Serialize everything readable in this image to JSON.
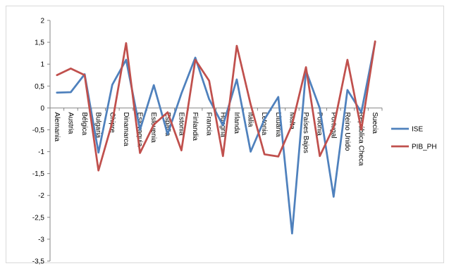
{
  "chart_data": {
    "type": "line",
    "title": "",
    "xlabel": "",
    "ylabel": "",
    "ylim": [
      -3.5,
      2
    ],
    "yticks": [
      "2",
      "1,5",
      "1",
      "0,5",
      "0",
      "-0,5",
      "-1",
      "-1,5",
      "-2",
      "-2,5",
      "-3",
      "-3,5"
    ],
    "ytick_values": [
      2,
      1.5,
      1,
      0.5,
      0,
      -0.5,
      -1,
      -1.5,
      -2,
      -2.5,
      -3,
      -3.5
    ],
    "categories": [
      "Alemania",
      "Austria",
      "Bélgica",
      "Bulgaria",
      "Chipre",
      "Dinamarca",
      "Eslovaquia",
      "Eslovenia",
      "España",
      "Estonia",
      "Finlandia",
      "Francia",
      "Hungría",
      "Irlanda",
      "Italia",
      "Letonia",
      "Lituania",
      "Malta",
      "Países Bajos",
      "Polonia",
      "Portugal",
      "Reino Unido",
      "República Checa",
      "Suecia"
    ],
    "grid": false,
    "legend_position": "right",
    "series": [
      {
        "name": "ISE",
        "color": "#4f81bd",
        "values": [
          0.35,
          0.36,
          0.77,
          -1.02,
          0.53,
          1.1,
          -0.5,
          0.52,
          -0.6,
          0.33,
          1.15,
          0.2,
          -0.4,
          0.65,
          -1.0,
          -0.26,
          0.25,
          -2.87,
          0.85,
          -0.01,
          -2.03,
          0.41,
          -0.1,
          1.51
        ]
      },
      {
        "name": "PIB_PH",
        "color": "#c0504d",
        "values": [
          0.75,
          0.9,
          0.75,
          -1.43,
          -0.33,
          1.48,
          -1.03,
          -0.38,
          -0.1,
          -0.97,
          1.1,
          0.62,
          -1.1,
          1.42,
          0.08,
          -1.06,
          -1.11,
          -0.38,
          0.93,
          -1.1,
          -0.44,
          1.1,
          -0.5,
          1.52
        ]
      }
    ]
  }
}
